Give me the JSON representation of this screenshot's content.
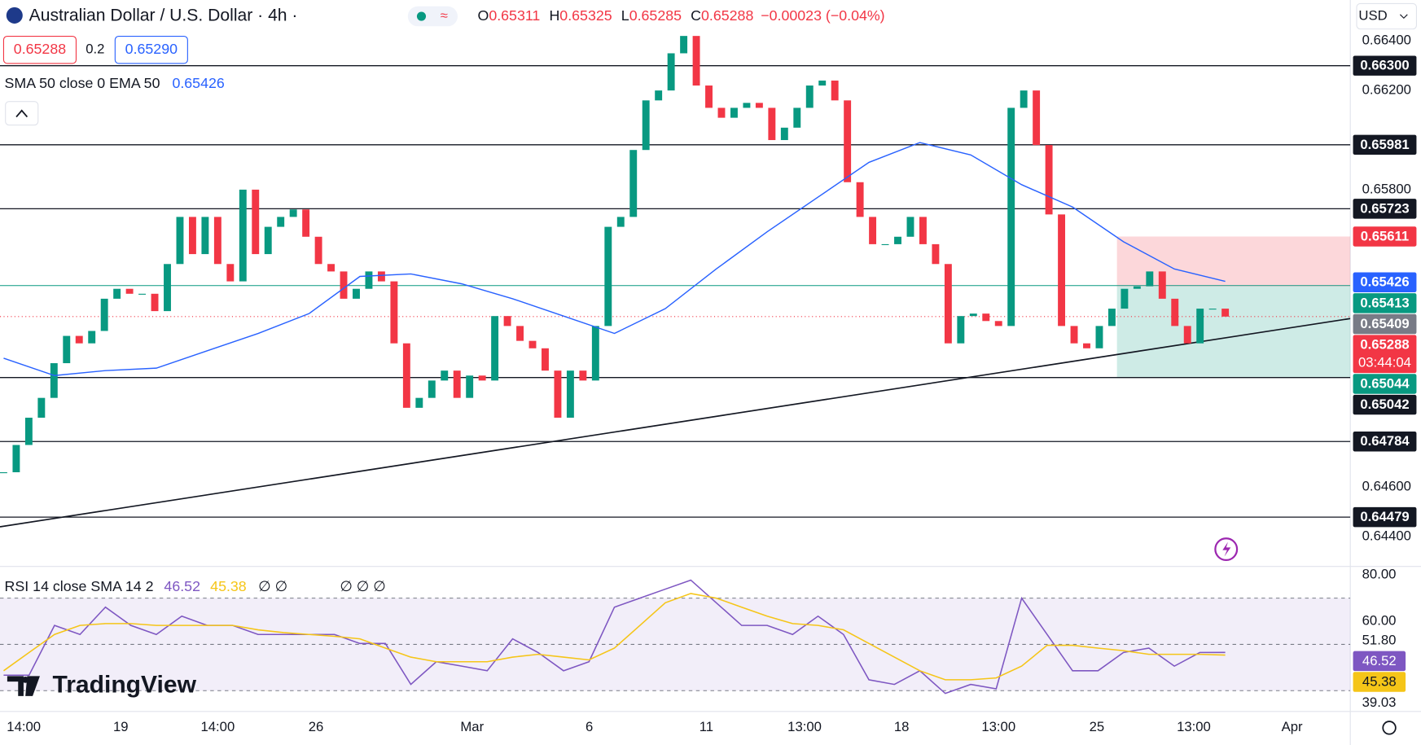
{
  "header": {
    "title": "Australian Dollar / U.S. Dollar · 4h ·",
    "ohlc": [
      {
        "label": "O",
        "value": "0.65311"
      },
      {
        "label": "H",
        "value": "0.65325"
      },
      {
        "label": "L",
        "value": "0.65285"
      },
      {
        "label": "C",
        "value": "0.65288"
      }
    ],
    "change": "−0.00023 (−0.04%)",
    "sell": "0.65288",
    "spread": "0.2",
    "buy": "0.65290",
    "currency": "USD",
    "logo": "TradingView"
  },
  "chart_data": [
    {
      "type": "candlestick",
      "legend": "SMA 50 close 0 EMA 50",
      "legend_value": "0.65426",
      "close": [
        0.6466,
        0.6477,
        0.6488,
        0.6496,
        0.651,
        0.6521,
        0.6518,
        0.6523,
        0.6536,
        0.654,
        0.6538,
        0.6538,
        0.6531,
        0.655,
        0.6569,
        0.6554,
        0.6569,
        0.655,
        0.6543,
        0.658,
        0.6554,
        0.6565,
        0.6569,
        0.6572,
        0.6561,
        0.655,
        0.6547,
        0.6536,
        0.654,
        0.6547,
        0.6543,
        0.6518,
        0.6492,
        0.6496,
        0.6503,
        0.6507,
        0.6496,
        0.6505,
        0.6503,
        0.6529,
        0.6525,
        0.6519,
        0.6516,
        0.6507,
        0.6488,
        0.6507,
        0.6503,
        0.6525,
        0.6565,
        0.6569,
        0.6596,
        0.6616,
        0.662,
        0.6635,
        0.6642,
        0.6622,
        0.6613,
        0.6609,
        0.6613,
        0.6615,
        0.6613,
        0.66,
        0.6605,
        0.6613,
        0.6622,
        0.6624,
        0.6616,
        0.6583,
        0.6569,
        0.6558,
        0.6558,
        0.6561,
        0.6569,
        0.6558,
        0.655,
        0.6518,
        0.6529,
        0.653,
        0.6527,
        0.6525,
        0.6613,
        0.662,
        0.6598,
        0.657,
        0.6525,
        0.6518,
        0.6516,
        0.6525,
        0.6532,
        0.654,
        0.6541,
        0.6547,
        0.6536,
        0.6525,
        0.6518,
        0.6532,
        0.6532,
        0.65288
      ],
      "sma": {
        "color": "#2962ff",
        "values": [
          0.6512,
          0.6505,
          0.6507,
          0.6508,
          0.6515,
          0.6522,
          0.653,
          0.6545,
          0.6546,
          0.6542,
          0.6536,
          0.6529,
          0.6522,
          0.6532,
          0.6548,
          0.6563,
          0.6577,
          0.6591,
          0.6599,
          0.6594,
          0.6582,
          0.6573,
          0.6559,
          0.6548,
          0.6543
        ]
      },
      "up_color": "#089981",
      "down_color": "#f23645",
      "ylim": [
        0.6428,
        0.66565
      ],
      "yticks": [
        {
          "value": 0.664,
          "label": "0.66400"
        },
        {
          "value": 0.662,
          "label": "0.66200"
        },
        {
          "value": 0.658,
          "label": "0.65800"
        },
        {
          "value": 0.646,
          "label": "0.64600"
        },
        {
          "value": 0.644,
          "label": "0.64400"
        }
      ],
      "levels": [
        {
          "value": 0.663,
          "label": "0.66300"
        },
        {
          "value": 0.65981,
          "label": "0.65981"
        },
        {
          "value": 0.65723,
          "label": "0.65723"
        },
        {
          "value": 0.65042,
          "label": "0.65042"
        },
        {
          "value": 0.64784,
          "label": "0.64784"
        },
        {
          "value": 0.64479,
          "label": "0.64479"
        }
      ],
      "price_labels": [
        {
          "value": 0.65611,
          "color": "#f23645"
        },
        {
          "value": 0.65426,
          "color": "#2962ff"
        },
        {
          "value": 0.65413,
          "color": "#089981"
        },
        {
          "value": 0.65409,
          "color": "#787b86"
        },
        {
          "value": 0.65288,
          "color": "#f23645",
          "countdown": "03:44:04"
        },
        {
          "value": 0.65044,
          "color": "#089981"
        }
      ],
      "position": {
        "stop": 0.65611,
        "entry": 0.65409,
        "target": 0.65044
      },
      "trendline": [
        0.6444,
        0.6528
      ],
      "xticks": [
        {
          "value": 1.6,
          "label": "14:00"
        },
        {
          "value": 9.3,
          "label": "19"
        },
        {
          "value": 17,
          "label": "14:00"
        },
        {
          "value": 24.8,
          "label": "26"
        },
        {
          "value": 37.2,
          "label": "Mar"
        },
        {
          "value": 46.5,
          "label": "6"
        },
        {
          "value": 55.8,
          "label": "11"
        },
        {
          "value": 63.6,
          "label": "13:00"
        },
        {
          "value": 71.3,
          "label": "18"
        },
        {
          "value": 79,
          "label": "13:00"
        },
        {
          "value": 86.8,
          "label": "25"
        },
        {
          "value": 94.5,
          "label": "13:00"
        },
        {
          "value": 102.3,
          "label": "Apr"
        }
      ]
    },
    {
      "type": "line",
      "title": "RSI 14 close SMA 14 2",
      "legend_values": [
        46.52,
        45.38
      ],
      "extra": [
        "∅ ∅",
        "∅ ∅ ∅"
      ],
      "series": [
        {
          "color": "#7e57c2",
          "values": [
            36.7,
            36.7,
            58.2,
            54.3,
            66.1,
            58.2,
            54.3,
            62.2,
            58.2,
            58.2,
            54.3,
            54.3,
            54.3,
            54.3,
            50.4,
            50.4,
            32.7,
            42.5,
            40.6,
            38.6,
            52.4,
            46.5,
            38.6,
            42.5,
            66.1,
            70,
            73.9,
            77.8,
            68,
            58.2,
            58.2,
            54.3,
            62.2,
            54.3,
            34.7,
            32.7,
            38.6,
            28.8,
            32.7,
            30.8,
            70,
            54.3,
            38.6,
            38.6,
            46.5,
            48.4,
            40.6,
            46.5,
            46.52
          ]
        },
        {
          "color": "#f5c518",
          "values": [
            38.6,
            46.5,
            54.3,
            58.2,
            59,
            59,
            58.2,
            58.2,
            58.2,
            58.2,
            56.3,
            55.1,
            54.3,
            53.5,
            52.4,
            48.4,
            44.5,
            42.5,
            42.5,
            42.5,
            44.5,
            45.7,
            44.5,
            43.3,
            48.4,
            58.2,
            68,
            72,
            70,
            66.1,
            62.2,
            59,
            58.2,
            56.3,
            50.4,
            44.5,
            38.6,
            34.7,
            34.7,
            35.5,
            40.6,
            49.6,
            49.6,
            48.4,
            47.3,
            45.7,
            45.7,
            45.7,
            45.38
          ]
        }
      ],
      "ylim": [
        21,
        83.7
      ],
      "yticks": [
        {
          "value": 80,
          "label": "80.00"
        },
        {
          "value": 60,
          "label": "60.00"
        }
      ],
      "bands": [
        70,
        50,
        30
      ],
      "value_labels": [
        {
          "value": 51.8,
          "label": "51.80"
        },
        {
          "value": 46.52,
          "label": "46.52",
          "color": "#7e57c2"
        },
        {
          "value": 45.38,
          "label": "45.38",
          "color": "#f5c518"
        },
        {
          "value": 39.03,
          "label": "39.03"
        }
      ]
    }
  ]
}
